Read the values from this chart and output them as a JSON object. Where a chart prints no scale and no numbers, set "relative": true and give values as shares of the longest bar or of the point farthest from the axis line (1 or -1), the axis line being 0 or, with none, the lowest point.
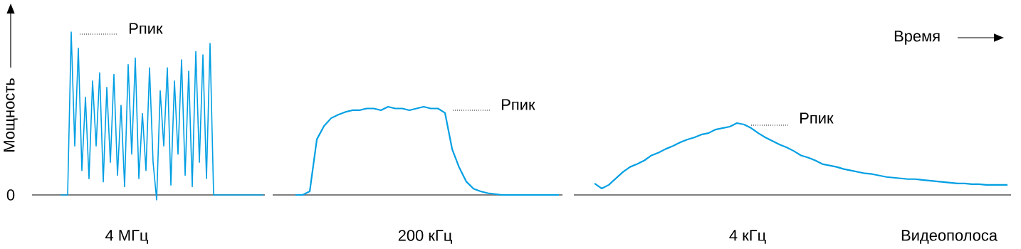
{
  "chart_data": [
    {
      "type": "line",
      "relative": true,
      "ylabel": "Мощность",
      "xlabel": "4 МГц",
      "categories": [
        null,
        null,
        null,
        null,
        null,
        null,
        null,
        null,
        null,
        null,
        null,
        null,
        null,
        null,
        null,
        null,
        null,
        null,
        null,
        null,
        null,
        null,
        null,
        null,
        null,
        null,
        null,
        null,
        null,
        null,
        null,
        null,
        null,
        null,
        null,
        null,
        null,
        null,
        null,
        null,
        null,
        null,
        null,
        null,
        null,
        null,
        null,
        null,
        null,
        null,
        null,
        null,
        null,
        null,
        null,
        null,
        null,
        null
      ],
      "series": [
        {
          "color": "#009fe3",
          "values": [
            0,
            0,
            0,
            1.0,
            0.3,
            0.9,
            0.15,
            0.6,
            0.1,
            0.7,
            0.3,
            0.75,
            0.08,
            0.66,
            0.2,
            0.74,
            0.12,
            0.55,
            0.05,
            0.8,
            0.25,
            0.84,
            0.1,
            0.5,
            0.15,
            0.78,
            0.2,
            -0.03,
            0.64,
            0.3,
            0.78,
            0.06,
            0.7,
            0.25,
            0.83,
            0.12,
            0.76,
            0.05,
            0.88,
            0.2,
            0.86,
            0.1,
            0.93,
            0,
            0,
            0,
            0,
            0,
            0,
            0,
            0,
            0,
            0,
            0,
            0,
            0,
            0,
            0
          ]
        }
      ],
      "annotations": [
        "Рпик",
        "0"
      ]
    },
    {
      "type": "line",
      "relative": true,
      "xlabel": "200 кГц",
      "categories": [
        null,
        null,
        null,
        null,
        null,
        null,
        null,
        null,
        null,
        null,
        null,
        null,
        null,
        null,
        null,
        null,
        null,
        null,
        null,
        null,
        null,
        null,
        null,
        null,
        null,
        null,
        null,
        null,
        null,
        null,
        null,
        null,
        null,
        null,
        null,
        null,
        null,
        null
      ],
      "series": [
        {
          "color": "#009fe3",
          "values": [
            0,
            0,
            0.04,
            0.63,
            0.78,
            0.87,
            0.91,
            0.94,
            0.96,
            0.96,
            0.98,
            0.98,
            0.96,
            1.0,
            0.98,
            0.98,
            0.96,
            0.98,
            1.0,
            0.98,
            0.98,
            0.93,
            0.52,
            0.31,
            0.15,
            0.07,
            0.04,
            0.02,
            0.01,
            0,
            0,
            0,
            0,
            0,
            0,
            0,
            0,
            0
          ]
        }
      ],
      "annotations": [
        "Рпик"
      ]
    },
    {
      "type": "line",
      "relative": true,
      "xlabel": "4 кГц",
      "categories": [
        null,
        null,
        null,
        null,
        null,
        null,
        null,
        null,
        null,
        null,
        null,
        null,
        null,
        null,
        null,
        null,
        null,
        null,
        null,
        null,
        null,
        null,
        null,
        null,
        null,
        null,
        null,
        null,
        null,
        null,
        null,
        null,
        null,
        null,
        null,
        null,
        null,
        null,
        null,
        null,
        null,
        null,
        null,
        null,
        null,
        null,
        null,
        null,
        null,
        null,
        null,
        null,
        null,
        null,
        null,
        null,
        null,
        null,
        null
      ],
      "series": [
        {
          "color": "#009fe3",
          "values": [
            0.16,
            0.09,
            0.14,
            0.23,
            0.32,
            0.39,
            0.43,
            0.48,
            0.55,
            0.59,
            0.64,
            0.68,
            0.73,
            0.77,
            0.8,
            0.84,
            0.86,
            0.91,
            0.93,
            0.95,
            1.0,
            0.98,
            0.93,
            0.86,
            0.8,
            0.75,
            0.7,
            0.66,
            0.61,
            0.55,
            0.52,
            0.48,
            0.43,
            0.41,
            0.39,
            0.36,
            0.34,
            0.32,
            0.3,
            0.29,
            0.27,
            0.25,
            0.24,
            0.23,
            0.22,
            0.22,
            0.21,
            0.2,
            0.19,
            0.18,
            0.17,
            0.16,
            0.16,
            0.15,
            0.15,
            0.14,
            0.14,
            0.14,
            0.14
          ]
        }
      ],
      "annotations": [
        "Рпик",
        "Видеополоса",
        "Время"
      ]
    }
  ]
}
